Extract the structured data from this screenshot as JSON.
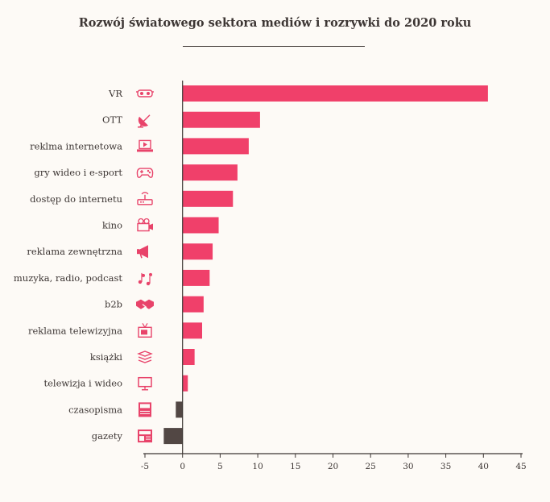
{
  "colors": {
    "positive": "#f0406a",
    "negative": "#524744",
    "axis": "#3d3634",
    "icon": "#e8436a"
  },
  "chart_data": {
    "type": "bar",
    "orientation": "horizontal",
    "title": "Rozwój światowego sektora mediów i rozrywki do 2020 roku",
    "xlabel": "",
    "ylabel": "",
    "xlim": [
      -5,
      45
    ],
    "xticks": [
      "-5",
      "0",
      "5",
      "10",
      "15",
      "20",
      "25",
      "30",
      "35",
      "40",
      "45"
    ],
    "grid": false,
    "categories": [
      "VR",
      "OTT",
      "reklma internetowa",
      "gry wideo i e-sport",
      "dostęp do internetu",
      "kino",
      "reklama zewnętrzna",
      "muzyka, radio, podcast",
      "b2b",
      "reklama telewizyjna",
      "książki",
      "telewizja i wideo",
      "czasopisma",
      "gazety"
    ],
    "icons": [
      "vr-goggles-icon",
      "satellite-dish-icon",
      "laptop-play-icon",
      "gamepad-icon",
      "router-icon",
      "film-camera-icon",
      "megaphone-icon",
      "music-notes-icon",
      "handshake-icon",
      "tv-icon",
      "books-icon",
      "monitor-icon",
      "magazine-icon",
      "newspaper-icon"
    ],
    "values": [
      40.6,
      10.3,
      8.8,
      7.3,
      6.7,
      4.8,
      4.0,
      3.6,
      2.8,
      2.6,
      1.6,
      0.7,
      -0.9,
      -2.5
    ]
  }
}
